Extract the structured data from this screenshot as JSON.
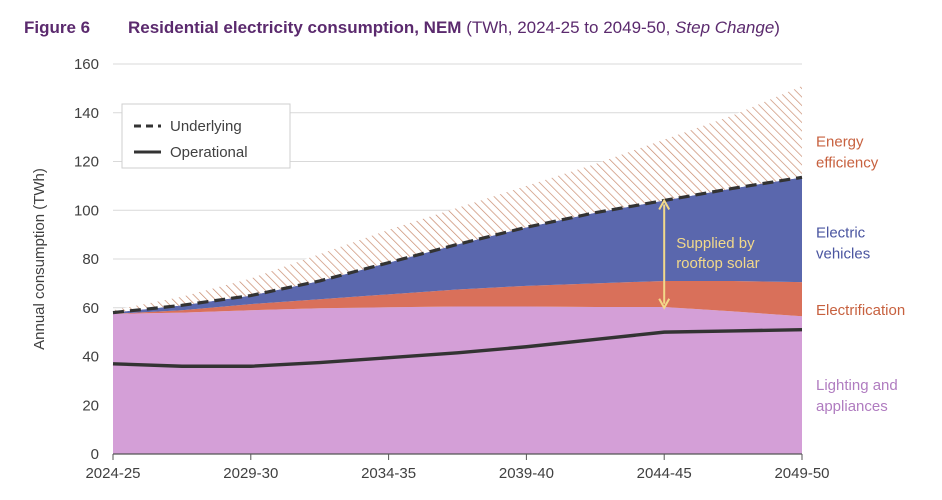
{
  "title": {
    "figure_label": "Figure 6",
    "main": "Residential electricity consumption, NEM",
    "sub_open": "(TWh, 2024-25 to 2049-50, ",
    "sub_italic": "Step Change",
    "sub_close": ")"
  },
  "chart_data": {
    "type": "area",
    "ylabel": "Annual consumption (TWh)",
    "xlabel": "",
    "ylim": [
      0,
      160
    ],
    "yticks": [
      0,
      20,
      40,
      60,
      80,
      100,
      120,
      140,
      160
    ],
    "x_tick_labels": [
      "2024-25",
      "2029-30",
      "2034-35",
      "2039-40",
      "2044-45",
      "2049-50"
    ],
    "x_tick_positions": [
      0,
      5,
      10,
      15,
      20,
      25
    ],
    "grid": "horizontal",
    "legend_position": "top-left",
    "legend": [
      {
        "label": "Underlying",
        "style": "dashed"
      },
      {
        "label": "Operational",
        "style": "solid"
      }
    ],
    "colors": {
      "lighting": "#d49fd7",
      "electrification": "#d9705a",
      "ev": "#5a67ad",
      "efficiency_hatch": "#c98b6e",
      "line": "#333333",
      "annotation": "#f2d98a",
      "label_orange": "#c7613f",
      "label_blue": "#4a55a0",
      "label_pink": "#b07cc0"
    },
    "x": [
      0,
      2.5,
      5,
      7.5,
      10,
      12.5,
      15,
      17.5,
      20,
      22.5,
      25
    ],
    "series": [
      {
        "name": "Lighting and appliances",
        "values": [
          57.5,
          58,
          59,
          59.8,
          60.2,
          60.5,
          60.5,
          60.3,
          60.3,
          58.5,
          56.5
        ]
      },
      {
        "name": "Electrification",
        "values": [
          57.5,
          59,
          61.5,
          63.5,
          65.5,
          67.5,
          69,
          70,
          71,
          71,
          70.5
        ]
      },
      {
        "name": "Electric vehicles",
        "values": [
          58,
          61,
          65,
          71,
          78.5,
          86,
          93,
          99,
          104,
          109,
          113.5
        ]
      },
      {
        "name": "Energy efficiency",
        "values": [
          59,
          64.5,
          72,
          82,
          92,
          101,
          110,
          119,
          129,
          139,
          151
        ]
      }
    ],
    "underlying": [
      58,
      61,
      65,
      71,
      78.5,
      86,
      93,
      99,
      104,
      109,
      113.5
    ],
    "operational": [
      37,
      36,
      36,
      37.5,
      39.5,
      41.5,
      44,
      47,
      50,
      50.5,
      51
    ],
    "area_labels": [
      {
        "lines": [
          "Energy",
          "efficiency"
        ],
        "y": 124,
        "color_key": "label_orange"
      },
      {
        "lines": [
          "Electric",
          "vehicles"
        ],
        "y": 86.5,
        "color_key": "label_blue"
      },
      {
        "lines": [
          "Electrification"
        ],
        "y": 59,
        "color_key": "label_orange"
      },
      {
        "lines": [
          "Lighting and",
          "appliances"
        ],
        "y": 24,
        "color_key": "label_pink"
      }
    ],
    "annotation": {
      "lines": [
        "Supplied by",
        "rooftop solar"
      ],
      "x": 20,
      "y_from": 60,
      "y_to": 104
    }
  }
}
